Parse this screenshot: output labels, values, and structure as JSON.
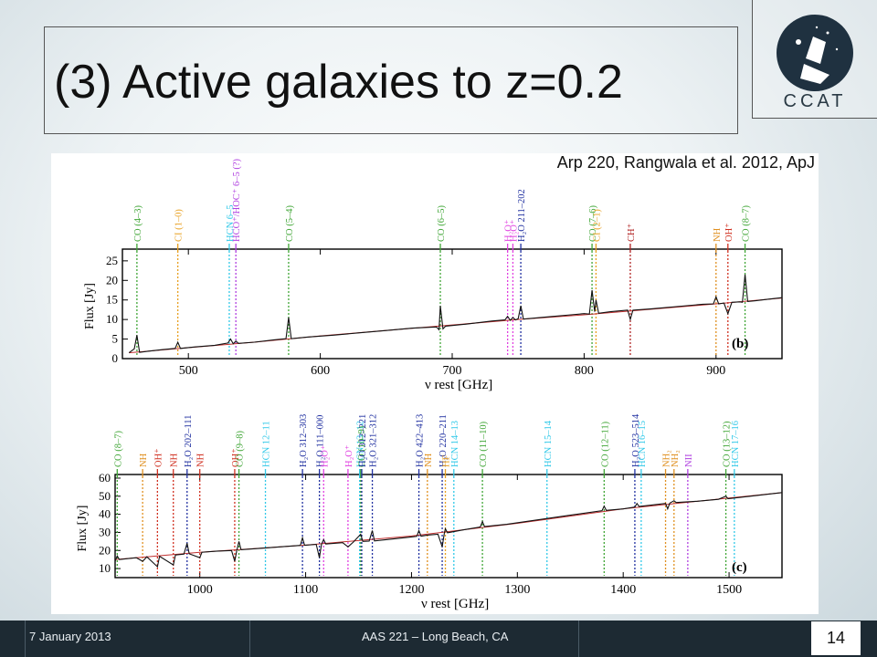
{
  "slide": {
    "title": "(3) Active galaxies to z=0.2",
    "citation": "Arp 220, Rangwala et al. 2012, ApJ",
    "logo_text": "CCAT",
    "logo_icon": "telescope-star-icon"
  },
  "footer": {
    "date": "7 January 2013",
    "event": "AAS 221 – Long Beach, CA",
    "page": "14"
  },
  "colors": {
    "footer_bg": "#1d2a33",
    "co": "#3fa535",
    "ci": "#e8a020",
    "hcn": "#30c8e8",
    "hco": "#b040e0",
    "h2o": "#2030a0",
    "h2oplus": "#e040e0",
    "ch": "#b02020",
    "nh": "#e09020",
    "oh": "#d03020"
  },
  "chart_data": [
    {
      "type": "line",
      "panel_label": "(b)",
      "xlabel": "ν rest [GHz]",
      "ylabel": "Flux [Jy]",
      "xlim": [
        450,
        950
      ],
      "ylim": [
        0,
        28
      ],
      "xticks": [
        500,
        600,
        700,
        800,
        900
      ],
      "yticks": [
        0,
        5,
        10,
        15,
        20,
        25
      ],
      "lines": [
        {
          "label": "CO (4–3)",
          "x": 461,
          "kind": "co"
        },
        {
          "label": "CI (1–0)",
          "x": 492,
          "kind": "ci"
        },
        {
          "label": "HCN 6–5",
          "x": 531,
          "kind": "hcn"
        },
        {
          "label": "HCO⁺/HOC⁺ 6–5 (?)",
          "x": 536,
          "kind": "hco"
        },
        {
          "label": "CO (5–4)",
          "x": 576,
          "kind": "co"
        },
        {
          "label": "CO (6–5)",
          "x": 691,
          "kind": "co"
        },
        {
          "label": "H₂O⁺",
          "x": 742,
          "kind": "h2oplus"
        },
        {
          "label": "H₂O⁺",
          "x": 746,
          "kind": "h2oplus"
        },
        {
          "label": "H₂O 211–202",
          "x": 752,
          "kind": "h2o"
        },
        {
          "label": "CO (7–6)",
          "x": 806,
          "kind": "co"
        },
        {
          "label": "CI (2–1)",
          "x": 809,
          "kind": "ci"
        },
        {
          "label": "CH⁺",
          "x": 835,
          "kind": "ch"
        },
        {
          "label": "NH",
          "x": 900,
          "kind": "nh"
        },
        {
          "label": "OH⁺",
          "x": 909,
          "kind": "oh"
        },
        {
          "label": "CO (8–7)",
          "x": 922,
          "kind": "co"
        }
      ],
      "continuum": [
        [
          455,
          1.5
        ],
        [
          500,
          2.8
        ],
        [
          550,
          4.2
        ],
        [
          600,
          5.8
        ],
        [
          650,
          7.2
        ],
        [
          700,
          8.6
        ],
        [
          750,
          10.0
        ],
        [
          800,
          11.2
        ],
        [
          850,
          12.6
        ],
        [
          900,
          14.0
        ],
        [
          950,
          15.5
        ]
      ],
      "spectrum": [
        [
          455,
          1.5
        ],
        [
          459,
          2.5
        ],
        [
          461,
          6
        ],
        [
          463,
          1.6
        ],
        [
          470,
          1.9
        ],
        [
          480,
          2.3
        ],
        [
          490,
          2.6
        ],
        [
          492,
          4.2
        ],
        [
          494,
          2.6
        ],
        [
          505,
          3.0
        ],
        [
          520,
          3.4
        ],
        [
          530,
          4.0
        ],
        [
          532,
          5.0
        ],
        [
          534,
          3.8
        ],
        [
          536,
          4.5
        ],
        [
          538,
          3.9
        ],
        [
          550,
          4.2
        ],
        [
          565,
          4.8
        ],
        [
          574,
          5.1
        ],
        [
          576,
          10.5
        ],
        [
          578,
          5.1
        ],
        [
          590,
          5.5
        ],
        [
          610,
          6.0
        ],
        [
          630,
          6.6
        ],
        [
          650,
          7.2
        ],
        [
          670,
          7.8
        ],
        [
          688,
          8.1
        ],
        [
          690,
          7.4
        ],
        [
          691,
          13.5
        ],
        [
          693,
          7.6
        ],
        [
          695,
          8.3
        ],
        [
          710,
          8.8
        ],
        [
          730,
          9.6
        ],
        [
          740,
          9.9
        ],
        [
          742,
          10.8
        ],
        [
          744,
          9.8
        ],
        [
          746,
          10.5
        ],
        [
          748,
          9.9
        ],
        [
          750,
          10.2
        ],
        [
          752,
          13.5
        ],
        [
          754,
          10.1
        ],
        [
          770,
          10.6
        ],
        [
          790,
          11.2
        ],
        [
          800,
          11.5
        ],
        [
          804,
          11.4
        ],
        [
          806,
          17.5
        ],
        [
          808,
          12.0
        ],
        [
          809,
          15.0
        ],
        [
          811,
          11.6
        ],
        [
          820,
          12.0
        ],
        [
          833,
          12.4
        ],
        [
          835,
          10.0
        ],
        [
          837,
          12.4
        ],
        [
          850,
          12.7
        ],
        [
          870,
          13.3
        ],
        [
          890,
          13.9
        ],
        [
          898,
          14.0
        ],
        [
          900,
          15.8
        ],
        [
          902,
          14.0
        ],
        [
          906,
          14.2
        ],
        [
          909,
          11.5
        ],
        [
          912,
          14.4
        ],
        [
          918,
          14.5
        ],
        [
          920,
          14.4
        ],
        [
          922,
          21.5
        ],
        [
          924,
          14.6
        ],
        [
          930,
          14.8
        ],
        [
          940,
          15.2
        ],
        [
          950,
          15.6
        ]
      ]
    },
    {
      "type": "line",
      "panel_label": "(c)",
      "xlabel": "ν rest [GHz]",
      "ylabel": "Flux [Jy]",
      "xlim": [
        920,
        1550
      ],
      "ylim": [
        5,
        62
      ],
      "xticks": [
        1000,
        1100,
        1200,
        1300,
        1400,
        1500
      ],
      "yticks": [
        10,
        20,
        30,
        40,
        50,
        60
      ],
      "lines": [
        {
          "label": "CO (8–7)",
          "x": 922,
          "kind": "co"
        },
        {
          "label": "NH",
          "x": 946,
          "kind": "nh"
        },
        {
          "label": "OH⁺",
          "x": 960,
          "kind": "oh"
        },
        {
          "label": "NH",
          "x": 975,
          "kind": "oh"
        },
        {
          "label": "H₂O 202–111",
          "x": 988,
          "kind": "h2o"
        },
        {
          "label": "NH",
          "x": 1000,
          "kind": "oh"
        },
        {
          "label": "OH⁺",
          "x": 1033,
          "kind": "oh"
        },
        {
          "label": "CO (9–8)",
          "x": 1037,
          "kind": "co"
        },
        {
          "label": "HCN 12–11",
          "x": 1062,
          "kind": "hcn"
        },
        {
          "label": "H₂O 312–303",
          "x": 1097,
          "kind": "h2o"
        },
        {
          "label": "H₂O 111–000",
          "x": 1113,
          "kind": "h2o"
        },
        {
          "label": "H₂O⁺",
          "x": 1117,
          "kind": "h2oplus"
        },
        {
          "label": "H₂O⁺",
          "x": 1140,
          "kind": "h2oplus"
        },
        {
          "label": "HCN 13–12",
          "x": 1151,
          "kind": "hcn"
        },
        {
          "label": "CO (10–9)",
          "x": 1152,
          "kind": "co"
        },
        {
          "label": "H₂O 312–221",
          "x": 1153,
          "kind": "h2o"
        },
        {
          "label": "H₂O 321–312",
          "x": 1163,
          "kind": "h2o"
        },
        {
          "label": "H₂O 422–413",
          "x": 1207,
          "kind": "h2o"
        },
        {
          "label": "NH",
          "x": 1215,
          "kind": "nh"
        },
        {
          "label": "H₂O 220–211",
          "x": 1229,
          "kind": "h2o"
        },
        {
          "label": "HF",
          "x": 1232,
          "kind": "ci"
        },
        {
          "label": "HCN 14–13",
          "x": 1240,
          "kind": "hcn"
        },
        {
          "label": "CO (11–10)",
          "x": 1267,
          "kind": "co"
        },
        {
          "label": "HCN 15–14",
          "x": 1328,
          "kind": "hcn"
        },
        {
          "label": "CO (12–11)",
          "x": 1382,
          "kind": "co"
        },
        {
          "label": "H₂O 523–514",
          "x": 1411,
          "kind": "h2o"
        },
        {
          "label": "HCN 16–15",
          "x": 1417,
          "kind": "hcn"
        },
        {
          "label": "NH₂",
          "x": 1440,
          "kind": "nh"
        },
        {
          "label": "NH₂",
          "x": 1448,
          "kind": "nh"
        },
        {
          "label": "NII",
          "x": 1461,
          "kind": "hco"
        },
        {
          "label": "CO (13–12)",
          "x": 1497,
          "kind": "co"
        },
        {
          "label": "HCN 17–16",
          "x": 1505,
          "kind": "hcn"
        }
      ],
      "continuum": [
        [
          920,
          15
        ],
        [
          1000,
          19
        ],
        [
          1100,
          23
        ],
        [
          1200,
          28
        ],
        [
          1300,
          35
        ],
        [
          1400,
          43
        ],
        [
          1500,
          49
        ],
        [
          1550,
          52
        ]
      ],
      "spectrum": [
        [
          920,
          14
        ],
        [
          922,
          17
        ],
        [
          924,
          15
        ],
        [
          940,
          16
        ],
        [
          946,
          14
        ],
        [
          950,
          16.5
        ],
        [
          960,
          11
        ],
        [
          962,
          16.8
        ],
        [
          975,
          12
        ],
        [
          977,
          17.5
        ],
        [
          985,
          18
        ],
        [
          988,
          24
        ],
        [
          990,
          18.2
        ],
        [
          1000,
          16
        ],
        [
          1002,
          19
        ],
        [
          1015,
          19.6
        ],
        [
          1030,
          20
        ],
        [
          1033,
          14
        ],
        [
          1035,
          20.2
        ],
        [
          1037,
          25
        ],
        [
          1039,
          20.4
        ],
        [
          1060,
          21.3
        ],
        [
          1080,
          22.2
        ],
        [
          1095,
          22.8
        ],
        [
          1097,
          27
        ],
        [
          1099,
          22.9
        ],
        [
          1110,
          23.4
        ],
        [
          1113,
          16
        ],
        [
          1115,
          23.5
        ],
        [
          1117,
          26
        ],
        [
          1119,
          23.6
        ],
        [
          1135,
          24.3
        ],
        [
          1140,
          22
        ],
        [
          1145,
          24.6
        ],
        [
          1152,
          29
        ],
        [
          1154,
          25
        ],
        [
          1160,
          25.2
        ],
        [
          1163,
          31
        ],
        [
          1165,
          25.3
        ],
        [
          1180,
          26.2
        ],
        [
          1200,
          27.5
        ],
        [
          1205,
          27.8
        ],
        [
          1207,
          31
        ],
        [
          1209,
          27.9
        ],
        [
          1215,
          28.5
        ],
        [
          1225,
          29
        ],
        [
          1229,
          22
        ],
        [
          1231,
          29.5
        ],
        [
          1232,
          32
        ],
        [
          1234,
          29.8
        ],
        [
          1250,
          31.5
        ],
        [
          1265,
          33
        ],
        [
          1267,
          36
        ],
        [
          1269,
          33.2
        ],
        [
          1290,
          34.5
        ],
        [
          1320,
          37
        ],
        [
          1350,
          39.5
        ],
        [
          1380,
          42
        ],
        [
          1382,
          44.5
        ],
        [
          1384,
          42.2
        ],
        [
          1400,
          43
        ],
        [
          1411,
          44
        ],
        [
          1413,
          46
        ],
        [
          1415,
          44.3
        ],
        [
          1430,
          45.3
        ],
        [
          1440,
          46
        ],
        [
          1442,
          43
        ],
        [
          1444,
          46.2
        ],
        [
          1448,
          47.5
        ],
        [
          1450,
          46.5
        ],
        [
          1470,
          47.2
        ],
        [
          1490,
          48.3
        ],
        [
          1497,
          50
        ],
        [
          1499,
          48.6
        ],
        [
          1520,
          50
        ],
        [
          1550,
          52
        ]
      ]
    }
  ]
}
